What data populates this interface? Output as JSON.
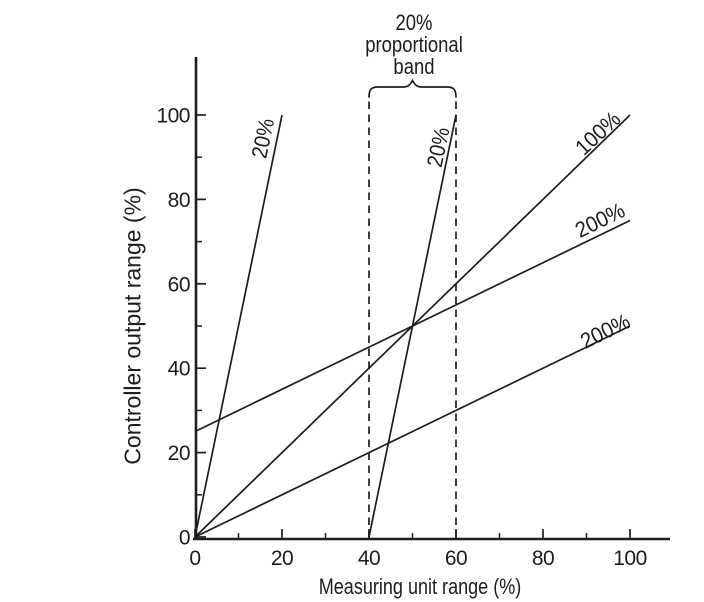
{
  "chart_data": {
    "type": "line",
    "xlabel": "Measuring unit range (%)",
    "ylabel": "Controller output range (%)",
    "xlim": [
      0,
      100
    ],
    "ylim": [
      0,
      100
    ],
    "x_ticks_major": [
      0,
      20,
      40,
      60,
      80,
      100
    ],
    "x_ticks_minor": [
      10,
      30,
      50,
      70,
      90
    ],
    "y_ticks_major": [
      0,
      20,
      40,
      60,
      80,
      100
    ],
    "y_ticks_minor": [
      10,
      30,
      50,
      70,
      90
    ],
    "grid": false,
    "legend": "none",
    "background_color": "#ffffff",
    "line_color": "#1d1d1d",
    "series": [
      {
        "label": "20%",
        "points": [
          [
            0,
            0
          ],
          [
            20,
            100
          ]
        ],
        "label_pos": [
          15.6,
          94.5
        ],
        "label_rotation": -78
      },
      {
        "label": "20%",
        "points": [
          [
            40,
            0
          ],
          [
            60,
            100
          ]
        ],
        "label_pos": [
          55.9,
          92.4
        ],
        "label_rotation": -78
      },
      {
        "label": "100%",
        "points": [
          [
            0,
            0
          ],
          [
            100,
            100
          ]
        ],
        "label_pos": [
          92.6,
          95.7
        ],
        "label_rotation": -43
      },
      {
        "label": "200%",
        "points": [
          [
            0,
            25
          ],
          [
            100,
            75
          ]
        ],
        "label_pos": [
          93.1,
          75.1
        ],
        "label_rotation": -26
      },
      {
        "label": "200%",
        "points": [
          [
            0,
            0
          ],
          [
            100,
            50
          ]
        ],
        "label_pos": [
          94.3,
          48.8
        ],
        "label_rotation": -26
      }
    ],
    "annotation": {
      "title_lines": [
        "20%",
        "proportional",
        "band"
      ],
      "brace_x_range": [
        40,
        60
      ],
      "dashed_vlines_x": [
        40,
        60
      ]
    }
  }
}
